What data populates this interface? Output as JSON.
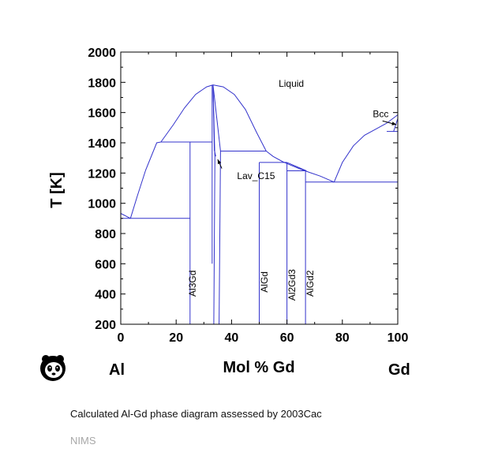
{
  "caption": "Calculated Al-Gd phase diagram assessed by 2003Cac",
  "source": "NIMS",
  "icon": "panda-logo-icon",
  "colors": {
    "phase_lines": "#3333cc",
    "axes": "#000000",
    "source_text": "#a8a8a8"
  },
  "chart_data": {
    "type": "line",
    "title": "",
    "xlabel": "Mol % Gd",
    "ylabel": "T [K]",
    "xlim": [
      0,
      100
    ],
    "ylim": [
      200,
      2000
    ],
    "xticks": [
      0,
      20,
      40,
      60,
      80,
      100
    ],
    "yticks": [
      200,
      400,
      600,
      800,
      1000,
      1200,
      1400,
      1600,
      1800,
      2000
    ],
    "left_element": "Al",
    "right_element": "Gd",
    "grid": false,
    "labels": [
      {
        "text": "Liquid",
        "x": 57,
        "y": 1770
      },
      {
        "text": "Bcc",
        "x": 91,
        "y": 1570
      },
      {
        "text": "Lav_C15",
        "x": 42,
        "y": 1160
      },
      {
        "text": "Al3Gd",
        "x": 27,
        "y": 470,
        "rotate": true
      },
      {
        "text": "AlGd",
        "x": 53,
        "y": 480,
        "rotate": true
      },
      {
        "text": "Al2Gd3",
        "x": 63,
        "y": 460,
        "rotate": true
      },
      {
        "text": "AlGd2",
        "x": 69.5,
        "y": 470,
        "rotate": true
      }
    ],
    "arrows": [
      {
        "from": [
          94.5,
          1545
        ],
        "to": [
          99.5,
          1520
        ]
      },
      {
        "from": [
          36.5,
          1230
        ],
        "to": [
          35,
          1290
        ]
      }
    ],
    "series": [
      {
        "points": [
          [
            0,
            933
          ],
          [
            3.5,
            900
          ]
        ]
      },
      {
        "points": [
          [
            3.5,
            900
          ],
          [
            6,
            1050
          ],
          [
            9,
            1220
          ],
          [
            13,
            1400
          ],
          [
            14.5,
            1405
          ]
        ]
      },
      {
        "points": [
          [
            14.5,
            1405
          ],
          [
            19,
            1520
          ],
          [
            23,
            1630
          ],
          [
            27,
            1720
          ],
          [
            31,
            1770
          ],
          [
            33.3,
            1783
          ]
        ]
      },
      {
        "points": [
          [
            33.3,
            1783
          ],
          [
            37,
            1770
          ],
          [
            41,
            1720
          ],
          [
            45,
            1620
          ],
          [
            49,
            1470
          ],
          [
            52.5,
            1345
          ]
        ]
      },
      {
        "points": [
          [
            52.5,
            1345
          ],
          [
            55,
            1310
          ],
          [
            58.5,
            1275
          ],
          [
            61,
            1255
          ],
          [
            65,
            1225
          ],
          [
            68,
            1205
          ],
          [
            72,
            1180
          ],
          [
            77,
            1140
          ]
        ]
      },
      {
        "points": [
          [
            77,
            1140
          ],
          [
            80,
            1270
          ],
          [
            84,
            1380
          ],
          [
            88,
            1450
          ],
          [
            92,
            1490
          ],
          [
            96,
            1530
          ],
          [
            100,
            1585
          ]
        ]
      },
      {
        "points": [
          [
            96,
            1475
          ],
          [
            100,
            1475
          ]
        ]
      },
      {
        "points": [
          [
            98.5,
            1475
          ],
          [
            100,
            1560
          ]
        ]
      },
      {
        "points": [
          [
            100,
            200
          ],
          [
            100,
            1585
          ]
        ]
      },
      {
        "points": [
          [
            0,
            900
          ],
          [
            25,
            900
          ]
        ]
      },
      {
        "points": [
          [
            14.5,
            1405
          ],
          [
            33,
            1405
          ]
        ]
      },
      {
        "points": [
          [
            25,
            200
          ],
          [
            25,
            1405
          ]
        ]
      },
      {
        "points": [
          [
            33,
            1783
          ],
          [
            33,
            1405
          ],
          [
            33,
            600
          ]
        ]
      },
      {
        "points": [
          [
            33.3,
            1783
          ],
          [
            34,
            1300
          ],
          [
            33.6,
            200
          ]
        ]
      },
      {
        "points": [
          [
            33.3,
            1783
          ],
          [
            33.8,
            1350
          ],
          [
            34.3,
            1310
          ]
        ]
      },
      {
        "points": [
          [
            33.3,
            1783
          ],
          [
            36,
            1345
          ],
          [
            35.5,
            200
          ]
        ]
      },
      {
        "points": [
          [
            36,
            1345
          ],
          [
            52.5,
            1345
          ]
        ]
      },
      {
        "points": [
          [
            50,
            200
          ],
          [
            50,
            1270
          ]
        ]
      },
      {
        "points": [
          [
            50,
            1270
          ],
          [
            60,
            1270
          ]
        ]
      },
      {
        "points": [
          [
            60,
            200
          ],
          [
            60,
            1270
          ]
        ]
      },
      {
        "points": [
          [
            60,
            1215
          ],
          [
            67,
            1215
          ]
        ]
      },
      {
        "points": [
          [
            60,
            1270
          ],
          [
            67,
            1215
          ]
        ]
      },
      {
        "points": [
          [
            66.7,
            200
          ],
          [
            66.7,
            1215
          ]
        ]
      },
      {
        "points": [
          [
            66.7,
            1140
          ],
          [
            100,
            1140
          ]
        ]
      }
    ]
  }
}
